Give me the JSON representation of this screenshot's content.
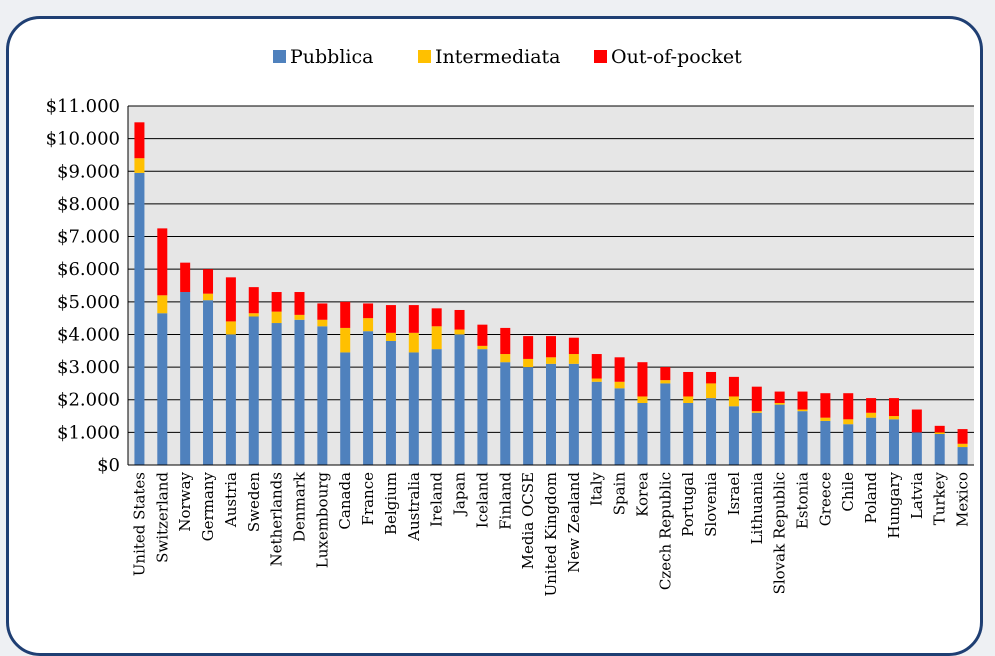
{
  "chart_data": {
    "type": "bar",
    "stacked": true,
    "title": "",
    "xlabel": "",
    "ylabel": "",
    "ylim": [
      0,
      11000
    ],
    "yticks": [
      "$0",
      "$1.000",
      "$2.000",
      "$3.000",
      "$4.000",
      "$5.000",
      "$6.000",
      "$7.000",
      "$8.000",
      "$9.000",
      "$10.000",
      "$11.000"
    ],
    "grid": true,
    "legend_position": "top",
    "colors": {
      "plot_background": "#e6e6e6",
      "frame": "#1f3f73"
    },
    "categories": [
      "United States",
      "Switzerland",
      "Norway",
      "Germany",
      "Austria",
      "Sweden",
      "Netherlands",
      "Denmark",
      "Luxembourg",
      "Canada",
      "France",
      "Belgium",
      "Australia",
      "Ireland",
      "Japan",
      "Iceland",
      "Finland",
      "Media OCSE",
      "United Kingdom",
      "New Zealand",
      "Italy",
      "Spain",
      "Korea",
      "Czech Republic",
      "Portugal",
      "Slovenia",
      "Israel",
      "Lithuania",
      "Slovak Republic",
      "Estonia",
      "Greece",
      "Chile",
      "Poland",
      "Hungary",
      "Latvia",
      "Turkey",
      "Mexico"
    ],
    "series": [
      {
        "name": "Pubblica",
        "color": "#4f81bd",
        "values": [
          8950,
          4650,
          5300,
          5050,
          4000,
          4550,
          4350,
          4450,
          4250,
          3450,
          4100,
          3800,
          3450,
          3550,
          4000,
          3550,
          3150,
          3000,
          3100,
          3100,
          2550,
          2350,
          1900,
          2500,
          1900,
          2050,
          1800,
          1600,
          1850,
          1650,
          1350,
          1250,
          1450,
          1400,
          1000,
          950,
          550
        ]
      },
      {
        "name": "Intermediata",
        "color": "#ffc000",
        "values": [
          450,
          550,
          0,
          200,
          400,
          100,
          350,
          150,
          200,
          750,
          400,
          250,
          600,
          700,
          150,
          100,
          250,
          250,
          200,
          300,
          100,
          200,
          200,
          100,
          200,
          450,
          300,
          50,
          50,
          50,
          100,
          150,
          150,
          100,
          0,
          50,
          100
        ]
      },
      {
        "name": "Out-of-pocket",
        "color": "#ff0000",
        "values": [
          1100,
          2050,
          900,
          750,
          1350,
          800,
          600,
          700,
          500,
          800,
          450,
          850,
          850,
          550,
          600,
          650,
          800,
          700,
          650,
          500,
          750,
          750,
          1050,
          400,
          750,
          350,
          600,
          750,
          350,
          550,
          750,
          800,
          450,
          550,
          700,
          200,
          450
        ]
      }
    ]
  }
}
